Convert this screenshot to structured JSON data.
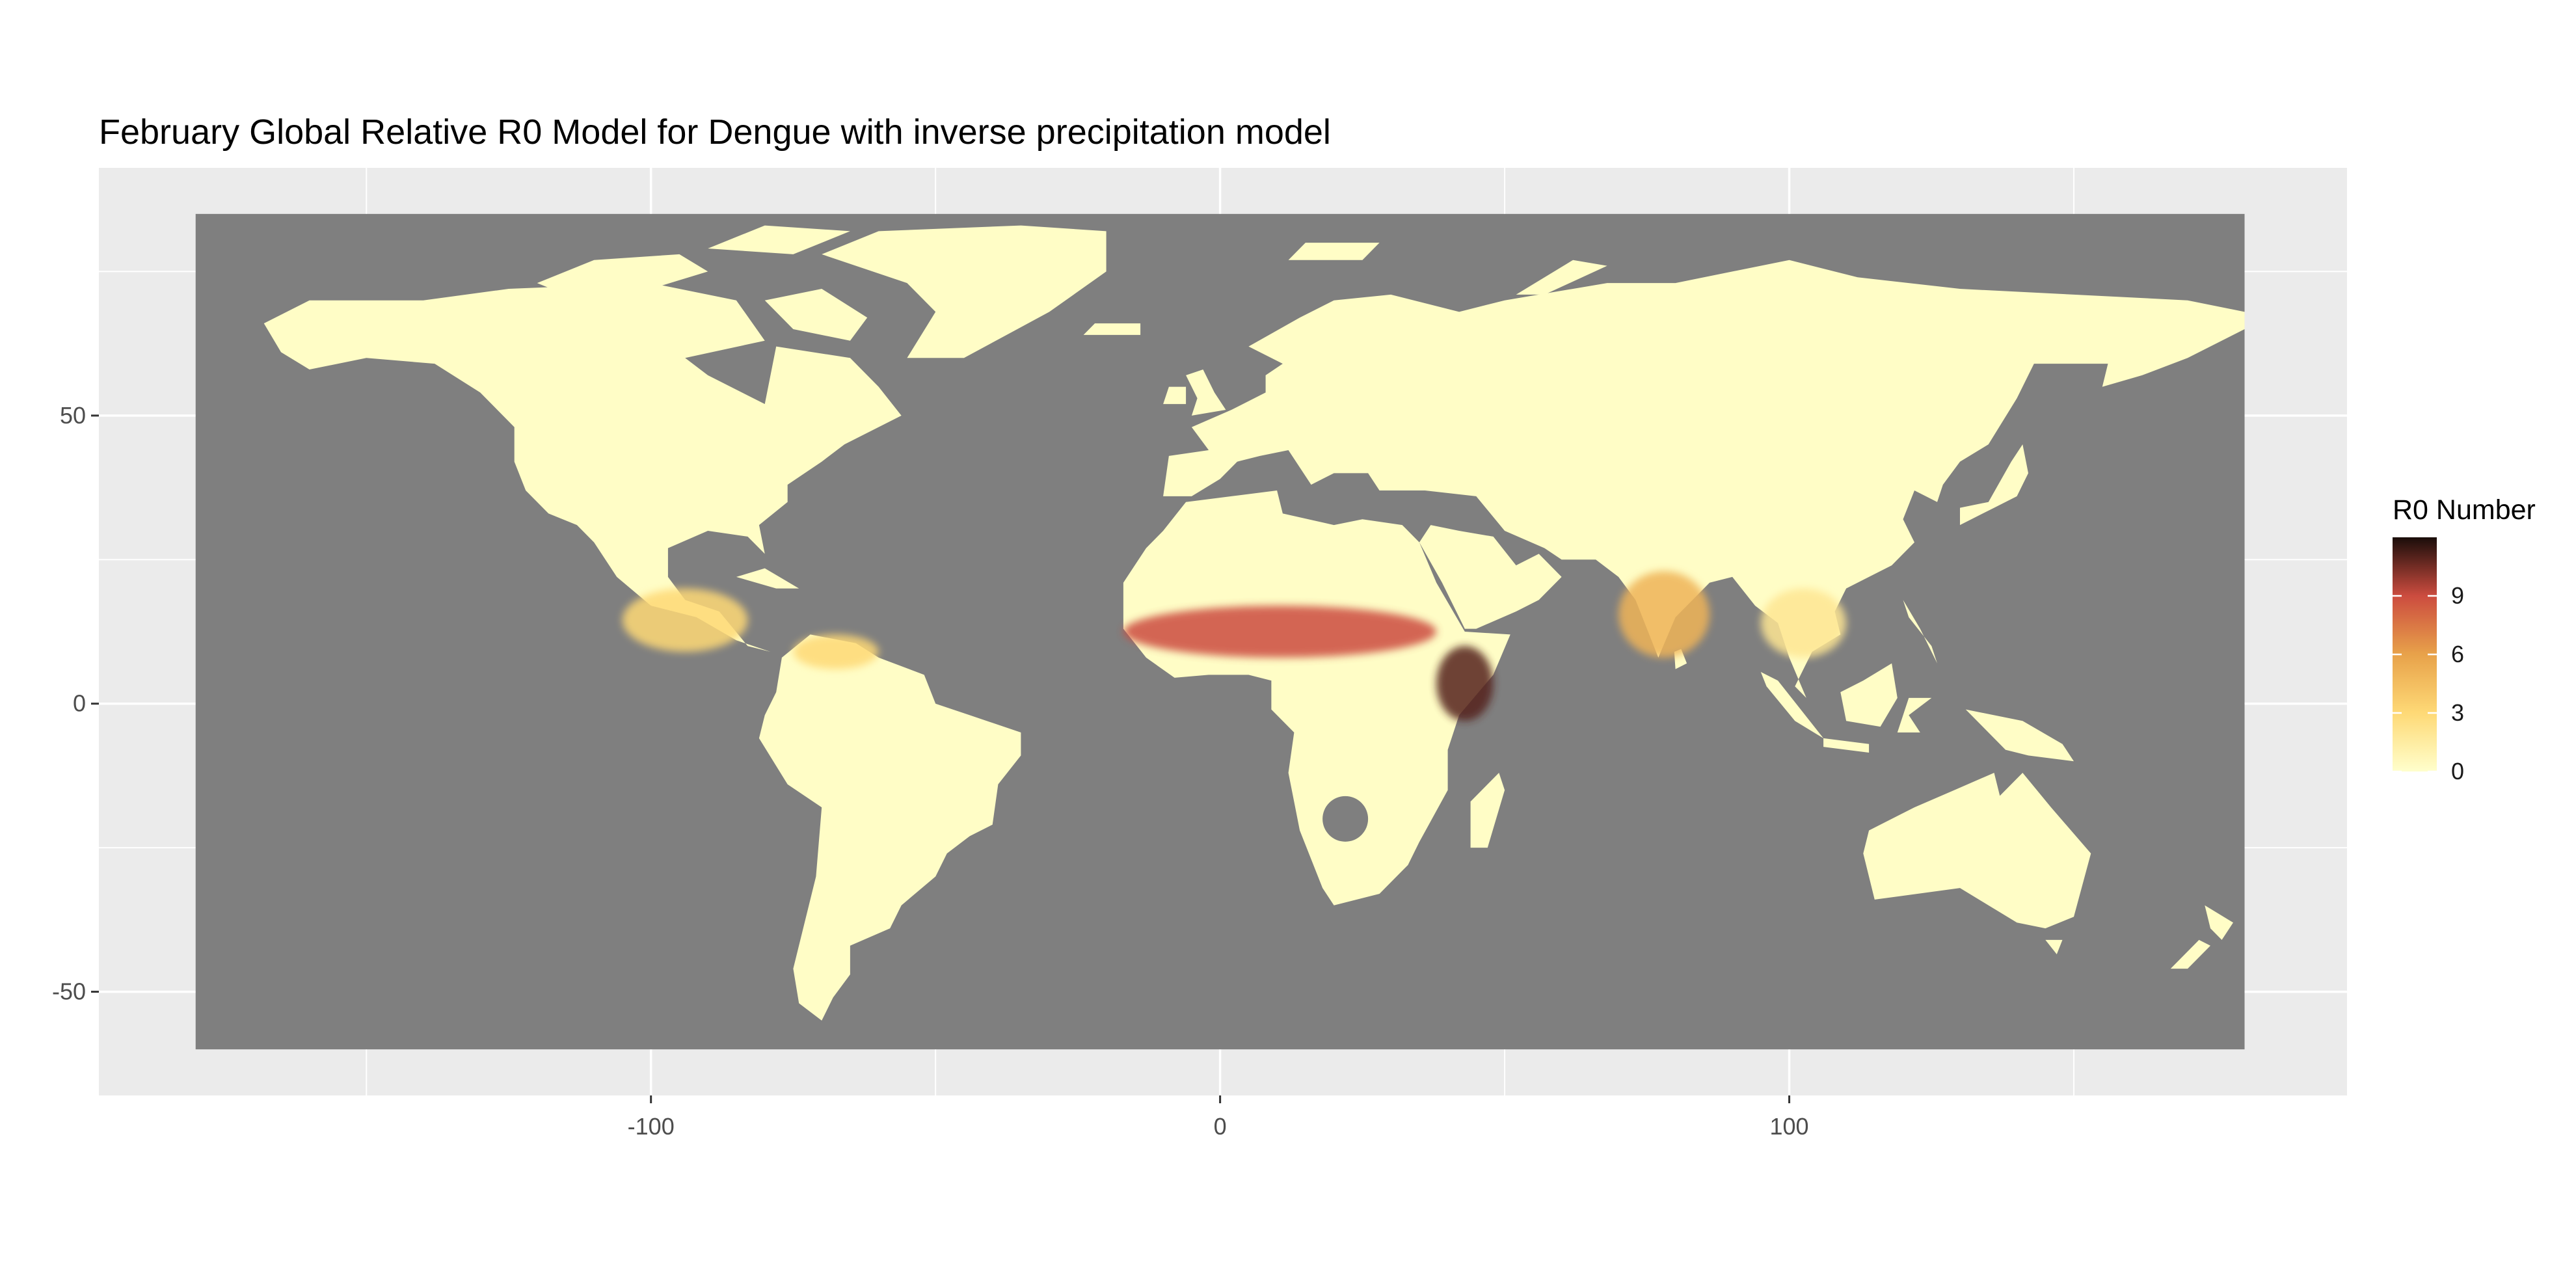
{
  "title": "February Global Relative R0 Model for Dengue with inverse precipitation model",
  "colors": {
    "panel_background": "#ebebeb",
    "gridline": "#ffffff",
    "ocean": "#7f7f7f",
    "land_low": "#fffdc6",
    "scale_low": "#ffffcc",
    "scale_mid_low": "#fed976",
    "scale_mid": "#e8a24a",
    "scale_mid_high": "#cc4c3f",
    "scale_high": "#1a0d0a"
  },
  "chart_data": {
    "type": "heatmap",
    "title": "February Global Relative R0 Model for Dengue with inverse precipitation model",
    "xlabel": "",
    "ylabel": "",
    "xlim": [
      -197,
      198
    ],
    "ylim": [
      -68,
      93
    ],
    "raster_extent": {
      "lon": [
        -180,
        180
      ],
      "lat": [
        -60,
        85
      ]
    },
    "x_ticks": [
      -100,
      0,
      100
    ],
    "x_tick_labels": [
      "-100",
      "0",
      "100"
    ],
    "y_ticks": [
      -50,
      0,
      50
    ],
    "y_tick_labels": [
      "-50",
      "0",
      "50"
    ],
    "grid": true,
    "legend": {
      "title": "R0 Number",
      "position": "right",
      "range": [
        0,
        12
      ],
      "breaks": [
        0,
        3,
        6,
        9
      ],
      "labels": [
        "0",
        "3",
        "6",
        "9"
      ]
    },
    "hotspots": [
      {
        "region": "West Africa Sahel belt",
        "lon": [
          -17,
          38
        ],
        "lat": [
          8,
          17
        ],
        "r0": 9
      },
      {
        "region": "Horn of Africa",
        "lon": [
          38,
          48
        ],
        "lat": [
          -3,
          10
        ],
        "r0": 11
      },
      {
        "region": "India",
        "lon": [
          70,
          86
        ],
        "lat": [
          8,
          23
        ],
        "r0": 5
      },
      {
        "region": "Central America",
        "lon": [
          -105,
          -83
        ],
        "lat": [
          9,
          20
        ],
        "r0": 3
      },
      {
        "region": "Northern South America",
        "lon": [
          -75,
          -60
        ],
        "lat": [
          6,
          12
        ],
        "r0": 3
      },
      {
        "region": "Southeast Asia",
        "lon": [
          95,
          110
        ],
        "lat": [
          8,
          20
        ],
        "r0": 2
      }
    ]
  }
}
